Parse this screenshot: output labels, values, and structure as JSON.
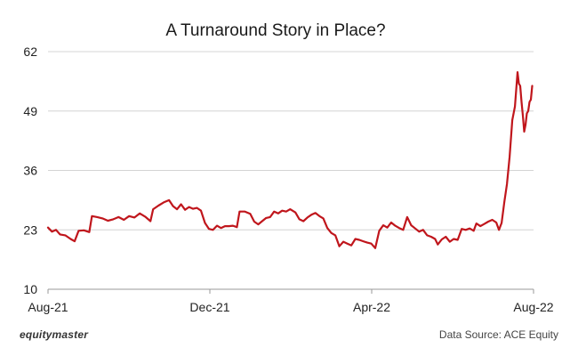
{
  "chart_data": {
    "type": "line",
    "title": "A Turnaround Story in Place?",
    "xlabel": "",
    "ylabel": "",
    "ylim": [
      10,
      62
    ],
    "y_ticks": [
      "62",
      "49",
      "36",
      "23",
      "10"
    ],
    "x_ticks": [
      "Aug-21",
      "Dec-21",
      "Apr-22",
      "Aug-22"
    ],
    "xlim": [
      "2021-08-01",
      "2022-08-01"
    ],
    "grid": "horizontal",
    "series": [
      {
        "color": "#c0161c",
        "points": [
          [
            "2021-08-01",
            23.5
          ],
          [
            "2021-08-04",
            22.6
          ],
          [
            "2021-08-07",
            23.0
          ],
          [
            "2021-08-10",
            22.0
          ],
          [
            "2021-08-14",
            21.8
          ],
          [
            "2021-08-18",
            21.0
          ],
          [
            "2021-08-21",
            20.5
          ],
          [
            "2021-08-24",
            22.8
          ],
          [
            "2021-08-28",
            22.9
          ],
          [
            "2021-09-01",
            22.5
          ],
          [
            "2021-09-03",
            26.0
          ],
          [
            "2021-09-07",
            25.8
          ],
          [
            "2021-09-11",
            25.5
          ],
          [
            "2021-09-15",
            25.0
          ],
          [
            "2021-09-19",
            25.3
          ],
          [
            "2021-09-23",
            25.8
          ],
          [
            "2021-09-27",
            25.2
          ],
          [
            "2021-10-01",
            26.0
          ],
          [
            "2021-10-05",
            25.7
          ],
          [
            "2021-10-09",
            26.6
          ],
          [
            "2021-10-13",
            25.9
          ],
          [
            "2021-10-17",
            24.9
          ],
          [
            "2021-10-19",
            27.5
          ],
          [
            "2021-10-23",
            28.3
          ],
          [
            "2021-10-27",
            29.0
          ],
          [
            "2021-10-31",
            29.5
          ],
          [
            "2021-11-03",
            28.2
          ],
          [
            "2021-11-06",
            27.5
          ],
          [
            "2021-11-09",
            28.6
          ],
          [
            "2021-11-12",
            27.4
          ],
          [
            "2021-11-15",
            28.0
          ],
          [
            "2021-11-18",
            27.6
          ],
          [
            "2021-11-21",
            27.8
          ],
          [
            "2021-11-24",
            27.2
          ],
          [
            "2021-11-27",
            24.5
          ],
          [
            "2021-11-30",
            23.2
          ],
          [
            "2021-12-03",
            23.0
          ],
          [
            "2021-12-06",
            23.9
          ],
          [
            "2021-12-09",
            23.4
          ],
          [
            "2021-12-12",
            23.8
          ],
          [
            "2021-12-15",
            23.8
          ],
          [
            "2021-12-18",
            23.9
          ],
          [
            "2021-12-21",
            23.6
          ],
          [
            "2021-12-23",
            27.0
          ],
          [
            "2021-12-27",
            27.0
          ],
          [
            "2021-12-31",
            26.5
          ],
          [
            "2022-01-03",
            24.8
          ],
          [
            "2022-01-06",
            24.2
          ],
          [
            "2022-01-09",
            24.9
          ],
          [
            "2022-01-12",
            25.6
          ],
          [
            "2022-01-15",
            25.8
          ],
          [
            "2022-01-18",
            27.0
          ],
          [
            "2022-01-21",
            26.6
          ],
          [
            "2022-01-24",
            27.2
          ],
          [
            "2022-01-27",
            27.0
          ],
          [
            "2022-01-30",
            27.5
          ],
          [
            "2022-02-03",
            26.8
          ],
          [
            "2022-02-06",
            25.3
          ],
          [
            "2022-02-09",
            24.9
          ],
          [
            "2022-02-12",
            25.7
          ],
          [
            "2022-02-15",
            26.3
          ],
          [
            "2022-02-18",
            26.7
          ],
          [
            "2022-02-21",
            26.0
          ],
          [
            "2022-02-24",
            25.5
          ],
          [
            "2022-02-27",
            23.4
          ],
          [
            "2022-03-02",
            22.3
          ],
          [
            "2022-03-05",
            21.8
          ],
          [
            "2022-03-08",
            19.4
          ],
          [
            "2022-03-11",
            20.4
          ],
          [
            "2022-03-14",
            20.0
          ],
          [
            "2022-03-17",
            19.6
          ],
          [
            "2022-03-20",
            21.0
          ],
          [
            "2022-03-23",
            20.8
          ],
          [
            "2022-03-26",
            20.5
          ],
          [
            "2022-03-29",
            20.2
          ],
          [
            "2022-04-01",
            20.0
          ],
          [
            "2022-04-04",
            19.0
          ],
          [
            "2022-04-07",
            22.8
          ],
          [
            "2022-04-10",
            24.0
          ],
          [
            "2022-04-13",
            23.5
          ],
          [
            "2022-04-16",
            24.6
          ],
          [
            "2022-04-19",
            23.9
          ],
          [
            "2022-04-22",
            23.4
          ],
          [
            "2022-04-25",
            23.0
          ],
          [
            "2022-04-28",
            25.8
          ],
          [
            "2022-05-01",
            24.0
          ],
          [
            "2022-05-04",
            23.3
          ],
          [
            "2022-05-07",
            22.6
          ],
          [
            "2022-05-10",
            23.0
          ],
          [
            "2022-05-13",
            21.8
          ],
          [
            "2022-05-16",
            21.5
          ],
          [
            "2022-05-19",
            21.0
          ],
          [
            "2022-05-21",
            19.8
          ],
          [
            "2022-05-24",
            20.9
          ],
          [
            "2022-05-27",
            21.5
          ],
          [
            "2022-05-30",
            20.4
          ],
          [
            "2022-06-02",
            21.0
          ],
          [
            "2022-06-05",
            20.8
          ],
          [
            "2022-06-08",
            23.2
          ],
          [
            "2022-06-11",
            23.0
          ],
          [
            "2022-06-14",
            23.3
          ],
          [
            "2022-06-17",
            22.8
          ],
          [
            "2022-06-19",
            24.4
          ],
          [
            "2022-06-22",
            23.8
          ],
          [
            "2022-06-25",
            24.3
          ],
          [
            "2022-06-28",
            24.8
          ],
          [
            "2022-07-01",
            25.2
          ],
          [
            "2022-07-04",
            24.6
          ],
          [
            "2022-07-06",
            23.0
          ],
          [
            "2022-07-08",
            24.5
          ],
          [
            "2022-07-10",
            29.0
          ],
          [
            "2022-07-12",
            33.0
          ],
          [
            "2022-07-14",
            39.0
          ],
          [
            "2022-07-16",
            47.0
          ],
          [
            "2022-07-18",
            50.0
          ],
          [
            "2022-07-20",
            57.5
          ],
          [
            "2022-07-21",
            55.0
          ],
          [
            "2022-07-22",
            54.5
          ],
          [
            "2022-07-23",
            51.0
          ],
          [
            "2022-07-24",
            48.0
          ],
          [
            "2022-07-25",
            44.5
          ],
          [
            "2022-07-26",
            46.0
          ],
          [
            "2022-07-27",
            48.5
          ],
          [
            "2022-07-28",
            49.0
          ],
          [
            "2022-07-29",
            51.0
          ],
          [
            "2022-07-30",
            51.5
          ],
          [
            "2022-07-31",
            54.5
          ]
        ]
      }
    ]
  },
  "footer": {
    "brand": "equitymaster",
    "source": "Data Source: ACE Equity"
  }
}
